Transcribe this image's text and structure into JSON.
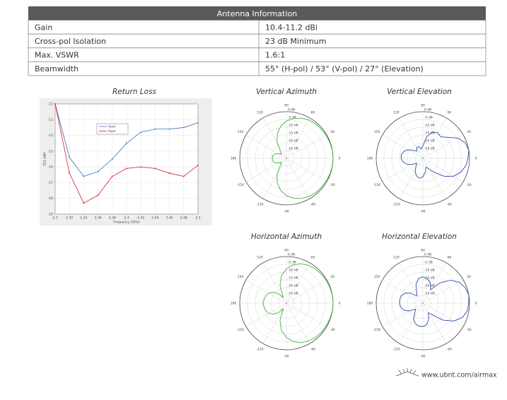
{
  "table": {
    "title": "Antenna Information",
    "rows": [
      [
        "Gain",
        "10.4-11.2 dBi"
      ],
      [
        "Cross-pol Isolation",
        "23 dB Minimum"
      ],
      [
        "Max. VSWR",
        "1.6:1"
      ],
      [
        "Beamwidth",
        "55° (H-pol) / 53° (V-pol) / 27° (Elevation)"
      ]
    ]
  },
  "chart_data": [
    {
      "type": "line",
      "title": "Return Loss",
      "xlabel": "Frequency (GHz)",
      "ylabel": "S11 (dB)",
      "x": [
        2.3,
        2.32,
        2.34,
        2.36,
        2.38,
        2.4,
        2.42,
        2.44,
        2.46,
        2.48,
        2.5
      ],
      "series": [
        {
          "name": "Vpol",
          "color": "#3a6fc4",
          "values": [
            -12.0,
            -15.4,
            -16.6,
            -16.3,
            -15.5,
            -14.5,
            -13.8,
            -13.6,
            -13.6,
            -13.5,
            -13.2
          ]
        },
        {
          "name": "Hpol",
          "color": "#d0202a",
          "values": [
            -12.0,
            -16.4,
            -18.3,
            -17.8,
            -16.6,
            -16.1,
            -16.0,
            -16.1,
            -16.4,
            -16.6,
            -15.9
          ]
        }
      ],
      "xlim": [
        2.3,
        2.5
      ],
      "xticks": [
        2.3,
        2.32,
        2.34,
        2.36,
        2.38,
        2.4,
        2.42,
        2.44,
        2.46,
        2.48,
        2.5
      ],
      "ylim": [
        -19,
        -12
      ],
      "yticks": [
        -12,
        -13,
        -14,
        -15,
        -16,
        -17,
        -18,
        -19
      ],
      "grid": true
    },
    {
      "type": "polar",
      "title": "Vertical Azimuth",
      "color": "#3cb43c",
      "theta": [
        0,
        10,
        20,
        30,
        40,
        50,
        60,
        70,
        80,
        90,
        100,
        110,
        120,
        130,
        140,
        150,
        160,
        170,
        180,
        190,
        200,
        210,
        220,
        230,
        240,
        250,
        260,
        270,
        280,
        290,
        300,
        310,
        320,
        330,
        340,
        350
      ],
      "values": [
        0,
        0,
        -0.3,
        -0.5,
        -0.8,
        -1,
        -1.5,
        -2.5,
        -4,
        -6,
        -9,
        -13,
        -18,
        -24,
        -26,
        -24,
        -22,
        -21,
        -21,
        -21,
        -22,
        -24,
        -26,
        -24,
        -18,
        -13,
        -9,
        -6,
        -4,
        -2.5,
        -1.5,
        -1,
        -0.8,
        -0.5,
        -0.3,
        0
      ],
      "rlim": [
        -30,
        0
      ],
      "rticks": [
        {
          "value": -25,
          "label": "-25 dB"
        },
        {
          "value": -20,
          "label": "-20 dB"
        },
        {
          "value": -15,
          "label": "-15 dB"
        },
        {
          "value": -10,
          "label": "-10 dB"
        },
        {
          "value": -5,
          "label": "-5 dB"
        },
        {
          "value": 0,
          "label": "0 dB"
        }
      ],
      "thetaticks": [
        0,
        30,
        60,
        90,
        120,
        150,
        180,
        -150,
        -120,
        -90,
        -60,
        -30
      ]
    },
    {
      "type": "polar",
      "title": "Vertical Elevation",
      "color": "#2a4fa8",
      "theta": [
        0,
        10,
        20,
        30,
        40,
        50,
        60,
        70,
        80,
        90,
        100,
        110,
        120,
        130,
        140,
        150,
        160,
        170,
        180,
        190,
        200,
        210,
        220,
        230,
        240,
        250,
        260,
        270,
        280,
        290,
        300,
        310,
        320,
        330,
        340,
        350
      ],
      "values": [
        -1,
        0,
        -1,
        -4,
        -9,
        -12,
        -11,
        -12,
        -16,
        -22,
        -24,
        -22,
        -22,
        -24,
        -22,
        -19,
        -17,
        -16,
        -16,
        -17,
        -19,
        -22,
        -25,
        -23,
        -20,
        -18,
        -17,
        -18,
        -21,
        -24,
        -22,
        -18,
        -12,
        -7,
        -4,
        -2
      ],
      "rlim": [
        -30,
        0
      ],
      "rticks": [
        {
          "value": -25,
          "label": "-25 dB"
        },
        {
          "value": -20,
          "label": "-20 dB"
        },
        {
          "value": -15,
          "label": "-15 dB"
        },
        {
          "value": -10,
          "label": "-10 dB"
        },
        {
          "value": -5,
          "label": "-5 dB"
        },
        {
          "value": 0,
          "label": "0 dB"
        }
      ],
      "thetaticks": [
        0,
        30,
        60,
        90,
        120,
        150,
        180,
        -150,
        -120,
        -90,
        -60,
        -30
      ]
    },
    {
      "type": "polar",
      "title": "Horizontal Azimuth",
      "color": "#3cb43c",
      "theta": [
        0,
        10,
        20,
        30,
        40,
        50,
        60,
        70,
        80,
        90,
        100,
        110,
        120,
        130,
        140,
        150,
        160,
        170,
        180,
        190,
        200,
        210,
        220,
        230,
        240,
        250,
        260,
        270,
        280,
        290,
        300,
        310,
        320,
        330,
        340,
        350
      ],
      "values": [
        0,
        0,
        -0.3,
        -0.5,
        -0.8,
        -1.2,
        -1.8,
        -3,
        -5,
        -8,
        -12,
        -18,
        -26,
        -22,
        -19,
        -17,
        -16,
        -15.5,
        -15,
        -15.5,
        -16,
        -17,
        -19,
        -22,
        -26,
        -18,
        -12,
        -8,
        -5,
        -3,
        -1.8,
        -1.2,
        -0.8,
        -0.5,
        -0.3,
        0
      ],
      "rlim": [
        -30,
        0
      ],
      "rticks": [
        {
          "value": -25,
          "label": "-25 dB"
        },
        {
          "value": -20,
          "label": "-20 dB"
        },
        {
          "value": -15,
          "label": "-15 dB"
        },
        {
          "value": -10,
          "label": "-10 dB"
        },
        {
          "value": -5,
          "label": "-5 dB"
        },
        {
          "value": 0,
          "label": "0 dB"
        }
      ],
      "thetaticks": [
        0,
        30,
        60,
        90,
        120,
        150,
        180,
        -150,
        -120,
        -90,
        -60,
        -30
      ]
    },
    {
      "type": "polar",
      "title": "Horizontal Elevation",
      "color": "#2a4fa8",
      "theta": [
        0,
        10,
        20,
        30,
        40,
        50,
        60,
        70,
        80,
        90,
        100,
        110,
        120,
        130,
        140,
        150,
        160,
        170,
        180,
        190,
        200,
        210,
        220,
        230,
        240,
        250,
        260,
        270,
        280,
        290,
        300,
        310,
        320,
        330,
        340,
        350
      ],
      "values": [
        -0.5,
        0,
        -1,
        -3,
        -7,
        -13,
        -20,
        -16,
        -14,
        -13,
        -14,
        -17,
        -22,
        -24,
        -20,
        -17,
        -15.5,
        -15,
        -15,
        -15.5,
        -17,
        -20,
        -24,
        -22,
        -18,
        -16,
        -15,
        -15,
        -16,
        -19,
        -23,
        -20,
        -13,
        -7,
        -3,
        -1
      ],
      "rlim": [
        -30,
        0
      ],
      "rticks": [
        {
          "value": -25,
          "label": "-25 dB"
        },
        {
          "value": -20,
          "label": "-20 dB"
        },
        {
          "value": -15,
          "label": "-15 dB"
        },
        {
          "value": -10,
          "label": "-10 dB"
        },
        {
          "value": -5,
          "label": "-5 dB"
        },
        {
          "value": 0,
          "label": "0 dB"
        }
      ],
      "thetaticks": [
        0,
        30,
        60,
        90,
        120,
        150,
        180,
        -150,
        -120,
        -90,
        -60,
        -30
      ]
    }
  ],
  "footer": {
    "url": "www.ubnt.com/airmax"
  }
}
